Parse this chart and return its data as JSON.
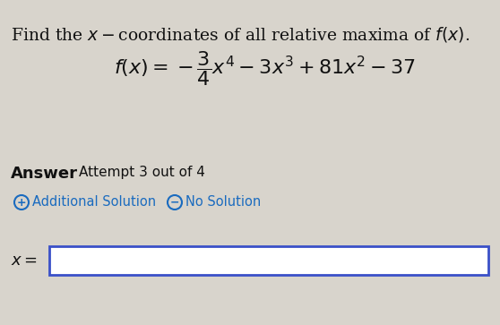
{
  "bg_color": "#d8d4cc",
  "title_text": "Find the $x-$coordinates of all relative maxima of $f(x)$.",
  "formula_text": "$f(x) = -\\dfrac{3}{4}x^4 - 3x^3 + 81x^2 - 37$",
  "answer_label": "Answer",
  "attempt_text": "Attempt 3 out of 4",
  "add_solution_text": "Additional Solution",
  "no_solution_text": "No Solution",
  "x_label": "$x =$",
  "input_box_color": "#3a50c8",
  "text_color": "#111111",
  "link_color": "#1a6bbf",
  "title_fontsize": 13.5,
  "formula_fontsize": 16,
  "answer_bold_fontsize": 13,
  "attempt_fontsize": 11,
  "small_fontsize": 10.5
}
